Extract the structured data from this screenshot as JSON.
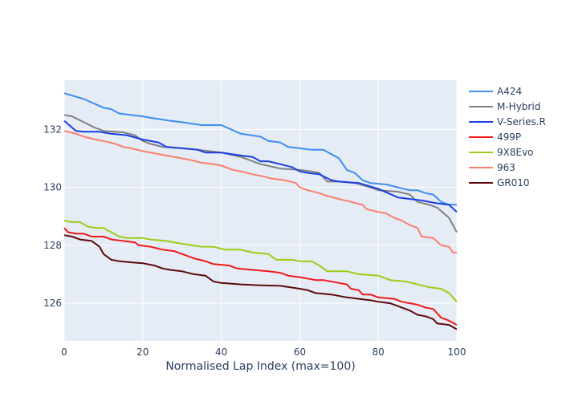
{
  "chart_data": {
    "type": "line",
    "xlabel": "Normalised Lap Index (max=100)",
    "ylabel": "",
    "xlim": [
      0,
      100
    ],
    "ylim": [
      124.7,
      133.7
    ],
    "x_ticks": [
      0,
      20,
      40,
      60,
      80,
      100
    ],
    "y_ticks": [
      126,
      128,
      130,
      132
    ],
    "grid": true,
    "legend_position": "right",
    "series": [
      {
        "name": "A424",
        "color": "#3e8ef0",
        "points": [
          [
            0,
            133.25
          ],
          [
            5,
            133.05
          ],
          [
            10,
            132.75
          ],
          [
            12,
            132.7
          ],
          [
            14,
            132.55
          ],
          [
            20,
            132.45
          ],
          [
            22,
            132.4
          ],
          [
            27,
            132.3
          ],
          [
            30,
            132.25
          ],
          [
            35,
            132.15
          ],
          [
            40,
            132.15
          ],
          [
            45,
            131.85
          ],
          [
            50,
            131.75
          ],
          [
            52,
            131.6
          ],
          [
            55,
            131.55
          ],
          [
            57,
            131.4
          ],
          [
            60,
            131.35
          ],
          [
            63,
            131.3
          ],
          [
            66,
            131.3
          ],
          [
            70,
            131.0
          ],
          [
            72,
            130.6
          ],
          [
            74,
            130.5
          ],
          [
            76,
            130.25
          ],
          [
            78,
            130.15
          ],
          [
            82,
            130.1
          ],
          [
            85,
            130.0
          ],
          [
            88,
            129.9
          ],
          [
            90,
            129.9
          ],
          [
            92,
            129.8
          ],
          [
            94,
            129.75
          ],
          [
            96,
            129.5
          ],
          [
            98,
            129.4
          ],
          [
            100,
            129.4
          ]
        ]
      },
      {
        "name": "M-Hybrid",
        "color": "#808080",
        "points": [
          [
            0,
            132.5
          ],
          [
            2,
            132.45
          ],
          [
            5,
            132.25
          ],
          [
            8,
            132.05
          ],
          [
            10,
            131.95
          ],
          [
            15,
            131.9
          ],
          [
            18,
            131.8
          ],
          [
            20,
            131.6
          ],
          [
            22,
            131.5
          ],
          [
            25,
            131.4
          ],
          [
            30,
            131.35
          ],
          [
            34,
            131.3
          ],
          [
            37,
            131.25
          ],
          [
            40,
            131.2
          ],
          [
            45,
            131.05
          ],
          [
            50,
            130.8
          ],
          [
            55,
            130.65
          ],
          [
            60,
            130.6
          ],
          [
            63,
            130.55
          ],
          [
            65,
            130.5
          ],
          [
            67,
            130.2
          ],
          [
            70,
            130.2
          ],
          [
            74,
            130.15
          ],
          [
            78,
            130.0
          ],
          [
            80,
            129.9
          ],
          [
            85,
            129.85
          ],
          [
            88,
            129.75
          ],
          [
            90,
            129.5
          ],
          [
            93,
            129.4
          ],
          [
            95,
            129.3
          ],
          [
            98,
            128.95
          ],
          [
            100,
            128.45
          ]
        ]
      },
      {
        "name": "V-Series.R",
        "color": "#1a3fe0",
        "points": [
          [
            0,
            132.3
          ],
          [
            3,
            131.95
          ],
          [
            5,
            131.92
          ],
          [
            9,
            131.92
          ],
          [
            12,
            131.85
          ],
          [
            16,
            131.8
          ],
          [
            20,
            131.65
          ],
          [
            24,
            131.55
          ],
          [
            26,
            131.4
          ],
          [
            30,
            131.35
          ],
          [
            34,
            131.3
          ],
          [
            36,
            131.2
          ],
          [
            40,
            131.2
          ],
          [
            45,
            131.1
          ],
          [
            48,
            131.05
          ],
          [
            50,
            130.9
          ],
          [
            52,
            130.9
          ],
          [
            55,
            130.8
          ],
          [
            58,
            130.7
          ],
          [
            60,
            130.55
          ],
          [
            62,
            130.5
          ],
          [
            65,
            130.45
          ],
          [
            68,
            130.25
          ],
          [
            70,
            130.2
          ],
          [
            75,
            130.15
          ],
          [
            80,
            129.95
          ],
          [
            85,
            129.65
          ],
          [
            88,
            129.6
          ],
          [
            91,
            129.55
          ],
          [
            95,
            129.45
          ],
          [
            98,
            129.4
          ],
          [
            100,
            129.15
          ]
        ]
      },
      {
        "name": "499P",
        "color": "#ef1a1a",
        "points": [
          [
            0,
            128.6
          ],
          [
            1,
            128.45
          ],
          [
            3,
            128.4
          ],
          [
            5,
            128.4
          ],
          [
            7,
            128.3
          ],
          [
            10,
            128.3
          ],
          [
            12,
            128.2
          ],
          [
            18,
            128.1
          ],
          [
            19,
            128.0
          ],
          [
            22,
            127.95
          ],
          [
            25,
            127.85
          ],
          [
            28,
            127.8
          ],
          [
            30,
            127.7
          ],
          [
            33,
            127.55
          ],
          [
            36,
            127.45
          ],
          [
            38,
            127.35
          ],
          [
            42,
            127.3
          ],
          [
            44,
            127.2
          ],
          [
            48,
            127.15
          ],
          [
            52,
            127.1
          ],
          [
            55,
            127.05
          ],
          [
            57,
            126.95
          ],
          [
            60,
            126.9
          ],
          [
            64,
            126.8
          ],
          [
            66,
            126.8
          ],
          [
            70,
            126.7
          ],
          [
            72,
            126.65
          ],
          [
            73,
            126.5
          ],
          [
            75,
            126.45
          ],
          [
            76,
            126.3
          ],
          [
            78,
            126.3
          ],
          [
            80,
            126.2
          ],
          [
            84,
            126.15
          ],
          [
            86,
            126.05
          ],
          [
            90,
            125.95
          ],
          [
            92,
            125.85
          ],
          [
            94,
            125.8
          ],
          [
            96,
            125.5
          ],
          [
            98,
            125.4
          ],
          [
            100,
            125.25
          ]
        ]
      },
      {
        "name": "9X8Evo",
        "color": "#9acd14",
        "points": [
          [
            0,
            128.85
          ],
          [
            2,
            128.8
          ],
          [
            4,
            128.8
          ],
          [
            6,
            128.65
          ],
          [
            8,
            128.6
          ],
          [
            10,
            128.6
          ],
          [
            12,
            128.45
          ],
          [
            14,
            128.3
          ],
          [
            16,
            128.25
          ],
          [
            20,
            128.25
          ],
          [
            22,
            128.2
          ],
          [
            26,
            128.15
          ],
          [
            30,
            128.05
          ],
          [
            35,
            127.95
          ],
          [
            38,
            127.95
          ],
          [
            41,
            127.85
          ],
          [
            45,
            127.85
          ],
          [
            48,
            127.75
          ],
          [
            52,
            127.7
          ],
          [
            54,
            127.5
          ],
          [
            58,
            127.5
          ],
          [
            60,
            127.45
          ],
          [
            63,
            127.45
          ],
          [
            65,
            127.3
          ],
          [
            67,
            127.1
          ],
          [
            72,
            127.1
          ],
          [
            75,
            127.0
          ],
          [
            80,
            126.95
          ],
          [
            83,
            126.8
          ],
          [
            87,
            126.75
          ],
          [
            90,
            126.65
          ],
          [
            93,
            126.55
          ],
          [
            96,
            126.5
          ],
          [
            98,
            126.35
          ],
          [
            100,
            126.05
          ]
        ]
      },
      {
        "name": "963",
        "color": "#fa7f6a",
        "points": [
          [
            0,
            131.95
          ],
          [
            3,
            131.85
          ],
          [
            5,
            131.75
          ],
          [
            8,
            131.65
          ],
          [
            10,
            131.6
          ],
          [
            13,
            131.5
          ],
          [
            15,
            131.4
          ],
          [
            17,
            131.35
          ],
          [
            20,
            131.25
          ],
          [
            22,
            131.2
          ],
          [
            26,
            131.1
          ],
          [
            30,
            131.0
          ],
          [
            32,
            130.95
          ],
          [
            35,
            130.85
          ],
          [
            38,
            130.8
          ],
          [
            40,
            130.75
          ],
          [
            43,
            130.6
          ],
          [
            45,
            130.55
          ],
          [
            48,
            130.45
          ],
          [
            50,
            130.4
          ],
          [
            53,
            130.3
          ],
          [
            56,
            130.25
          ],
          [
            59,
            130.15
          ],
          [
            60,
            130.0
          ],
          [
            62,
            129.9
          ],
          [
            65,
            129.8
          ],
          [
            67,
            129.7
          ],
          [
            70,
            129.6
          ],
          [
            73,
            129.5
          ],
          [
            76,
            129.4
          ],
          [
            77,
            129.25
          ],
          [
            80,
            129.15
          ],
          [
            82,
            129.1
          ],
          [
            84,
            128.95
          ],
          [
            86,
            128.85
          ],
          [
            88,
            128.7
          ],
          [
            90,
            128.6
          ],
          [
            91,
            128.3
          ],
          [
            94,
            128.25
          ],
          [
            96,
            128.0
          ],
          [
            98,
            127.95
          ],
          [
            99,
            127.75
          ],
          [
            100,
            127.75
          ]
        ]
      },
      {
        "name": "GR010",
        "color": "#5c0a0a",
        "points": [
          [
            0,
            128.35
          ],
          [
            2,
            128.3
          ],
          [
            4,
            128.2
          ],
          [
            7,
            128.15
          ],
          [
            9,
            127.95
          ],
          [
            10,
            127.7
          ],
          [
            12,
            127.5
          ],
          [
            14,
            127.45
          ],
          [
            18,
            127.4
          ],
          [
            20,
            127.38
          ],
          [
            23,
            127.3
          ],
          [
            25,
            127.2
          ],
          [
            27,
            127.15
          ],
          [
            30,
            127.1
          ],
          [
            33,
            127.0
          ],
          [
            36,
            126.95
          ],
          [
            38,
            126.75
          ],
          [
            40,
            126.7
          ],
          [
            45,
            126.65
          ],
          [
            50,
            126.62
          ],
          [
            55,
            126.6
          ],
          [
            60,
            126.5
          ],
          [
            62,
            126.45
          ],
          [
            64,
            126.35
          ],
          [
            68,
            126.3
          ],
          [
            72,
            126.2
          ],
          [
            75,
            126.15
          ],
          [
            78,
            126.1
          ],
          [
            80,
            126.05
          ],
          [
            83,
            126.0
          ],
          [
            85,
            125.9
          ],
          [
            87,
            125.8
          ],
          [
            88,
            125.75
          ],
          [
            90,
            125.6
          ],
          [
            92,
            125.55
          ],
          [
            94,
            125.45
          ],
          [
            95,
            125.3
          ],
          [
            98,
            125.25
          ],
          [
            100,
            125.1
          ]
        ]
      }
    ]
  }
}
